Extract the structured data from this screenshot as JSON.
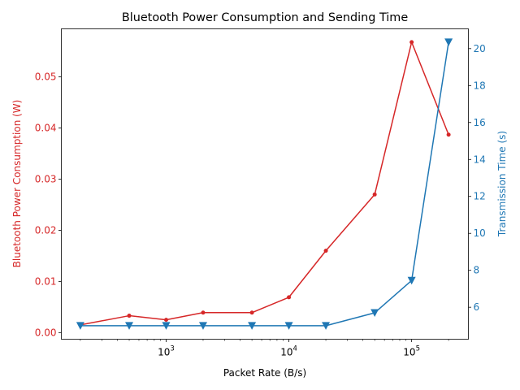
{
  "chart_data": {
    "type": "line",
    "title": "Bluetooth Power Consumption and Sending Time",
    "xlabel": "Packet Rate (B/s)",
    "x_scale": "log",
    "xlim": [
      140,
      290000
    ],
    "x_ticks": [
      {
        "value": 1000,
        "base": "10",
        "exp": "3"
      },
      {
        "value": 10000,
        "base": "10",
        "exp": "4"
      },
      {
        "value": 100000,
        "base": "10",
        "exp": "5"
      }
    ],
    "x": [
      200,
      500,
      1000,
      2000,
      5000,
      10000,
      20000,
      50000,
      100000,
      200000
    ],
    "y_left": {
      "label": "Bluetooth Power Consumption (W)",
      "color": "#d62728",
      "lim": [
        -0.0013,
        0.0594
      ],
      "ticks": [
        {
          "value": 0.0,
          "label": "0.00"
        },
        {
          "value": 0.01,
          "label": "0.01"
        },
        {
          "value": 0.02,
          "label": "0.02"
        },
        {
          "value": 0.03,
          "label": "0.03"
        },
        {
          "value": 0.04,
          "label": "0.04"
        },
        {
          "value": 0.05,
          "label": "0.05"
        }
      ]
    },
    "y_right": {
      "label": "Transmission Time (s)",
      "color": "#1f77b4",
      "lim": [
        4.27,
        21.07
      ],
      "ticks": [
        {
          "value": 6,
          "label": "6"
        },
        {
          "value": 8,
          "label": "8"
        },
        {
          "value": 10,
          "label": "10"
        },
        {
          "value": 12,
          "label": "12"
        },
        {
          "value": 14,
          "label": "14"
        },
        {
          "value": 16,
          "label": "16"
        },
        {
          "value": 18,
          "label": "18"
        },
        {
          "value": 20,
          "label": "20"
        }
      ]
    },
    "series": [
      {
        "axis": "left",
        "color": "#d62728",
        "marker": "circle",
        "values": [
          0.0015,
          0.0033,
          0.0025,
          0.0039,
          0.0039,
          0.0069,
          0.016,
          0.027,
          0.0568,
          0.0387
        ]
      },
      {
        "axis": "right",
        "color": "#1f77b4",
        "marker": "triangle-down",
        "values": [
          5.0,
          5.0,
          5.0,
          5.0,
          5.0,
          5.0,
          5.0,
          5.7,
          7.45,
          20.35
        ]
      }
    ],
    "grid": false,
    "legend": "none"
  }
}
